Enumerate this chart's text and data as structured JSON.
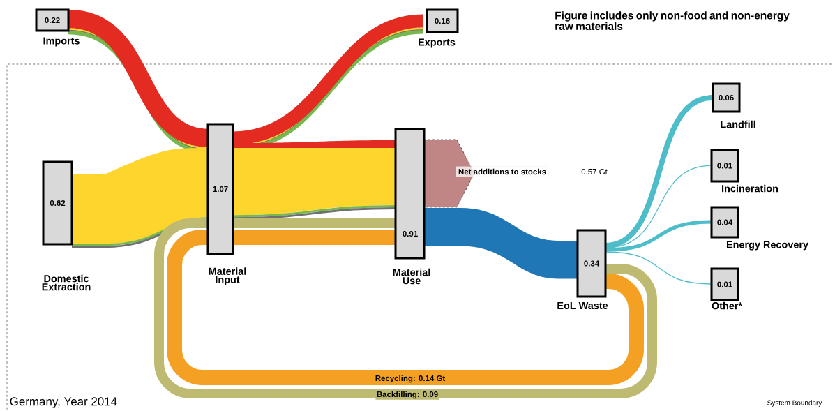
{
  "chart_data": {
    "type": "other",
    "title": "Figure includes only non-food and non-energy raw materials",
    "categories": [
      "Imports",
      "Exports",
      "Domestic Extraction",
      "Material Input",
      "Material Use",
      "Net additions to stocks",
      "EoL Waste",
      "Landfill",
      "Incineration",
      "Energy Recovery",
      "Other*"
    ],
    "values": [
      0.22,
      0.16,
      0.62,
      1.07,
      0.91,
      0.57,
      0.34,
      0.06,
      0.01,
      0.04,
      0.01
    ],
    "value_labels": [
      "0.22",
      "0.16",
      "0.62",
      "1.07",
      "0.91",
      "0.57 Gt",
      "0.34",
      "0.06",
      "0.01",
      "0.04",
      "0.01"
    ],
    "annotations": [
      "Germany, Year 2014",
      "System Boundary",
      "Recycling: 0.14 Gt",
      "Backfilling: 0.09"
    ]
  }
}
